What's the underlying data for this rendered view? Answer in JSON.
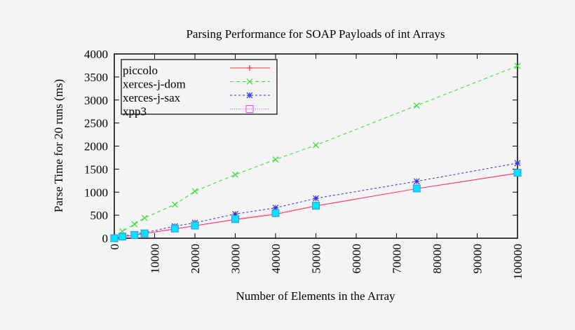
{
  "chart_data": {
    "type": "line",
    "title": "Parsing Performance for SOAP Payloads of int Arrays",
    "xlabel": "Number of Elements in the Array",
    "ylabel": "Parse Time for 20 runs (ms)",
    "xlim": [
      0,
      100000
    ],
    "ylim": [
      0,
      4000
    ],
    "xticks": [
      0,
      10000,
      20000,
      30000,
      40000,
      50000,
      60000,
      70000,
      80000,
      90000,
      100000
    ],
    "yticks": [
      0,
      500,
      1000,
      1500,
      2000,
      2500,
      3000,
      3500,
      4000
    ],
    "grid": false,
    "legend": "top-left",
    "x": [
      0,
      2000,
      5000,
      7500,
      15000,
      20000,
      30000,
      40000,
      50000,
      75000,
      100000
    ],
    "series": [
      {
        "name": "piccolo",
        "color": "#ff3030",
        "dash": "",
        "marker": "plus",
        "values": [
          0,
          30,
          65,
          100,
          200,
          270,
          405,
          520,
          700,
          1075,
          1410
        ]
      },
      {
        "name": "xerces-j-dom",
        "color": "#30e030",
        "dash": "5,4",
        "marker": "x",
        "values": [
          0,
          150,
          305,
          440,
          730,
          1020,
          1380,
          1710,
          2020,
          2880,
          3740
        ]
      },
      {
        "name": "xerces-j-sax",
        "color": "#3030e0",
        "dash": "3,3",
        "marker": "star",
        "values": [
          0,
          40,
          90,
          120,
          260,
          335,
          525,
          660,
          865,
          1235,
          1630
        ]
      },
      {
        "name": "xpp3",
        "color": "#ff40ff",
        "dash": "1,2",
        "marker": "square",
        "values": [
          0,
          35,
          70,
          105,
          210,
          275,
          415,
          545,
          705,
          1080,
          1420
        ]
      }
    ],
    "marker_fill": "#00e5ff"
  }
}
